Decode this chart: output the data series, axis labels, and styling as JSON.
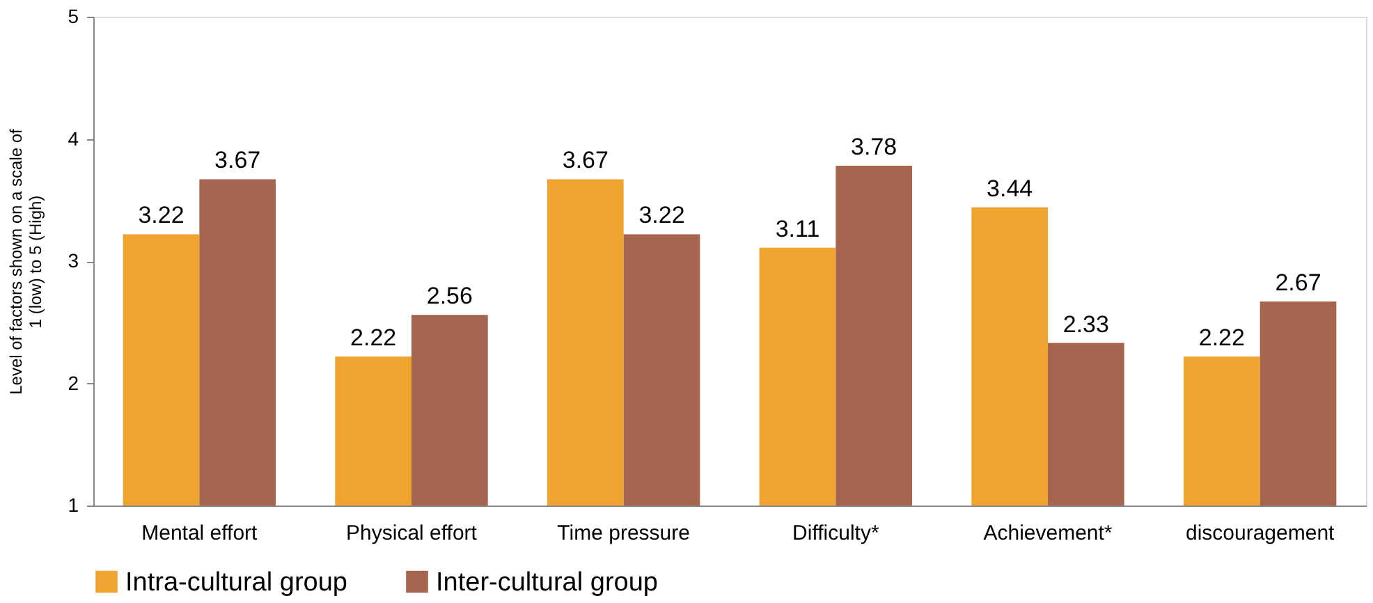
{
  "chart_data": {
    "type": "bar",
    "ylabel": "Level of factors shown on a scale of 1 (low) to 5 (High)",
    "categories": [
      "Mental effort",
      "Physical effort",
      "Time pressure",
      "Difficulty*",
      "Achievement*",
      "discouragement"
    ],
    "series": [
      {
        "name": "Intra-cultural group",
        "color": "#f0a430",
        "values": [
          3.22,
          2.22,
          3.67,
          3.11,
          3.44,
          2.22
        ]
      },
      {
        "name": "Inter-cultural group",
        "color": "#a5654e",
        "values": [
          3.67,
          2.56,
          3.22,
          3.78,
          2.33,
          2.67
        ]
      }
    ],
    "ylim": [
      1,
      5
    ],
    "yticks": [
      1,
      2,
      3,
      4,
      5
    ],
    "grid": false,
    "legend": "bottom",
    "data_labels": true
  }
}
